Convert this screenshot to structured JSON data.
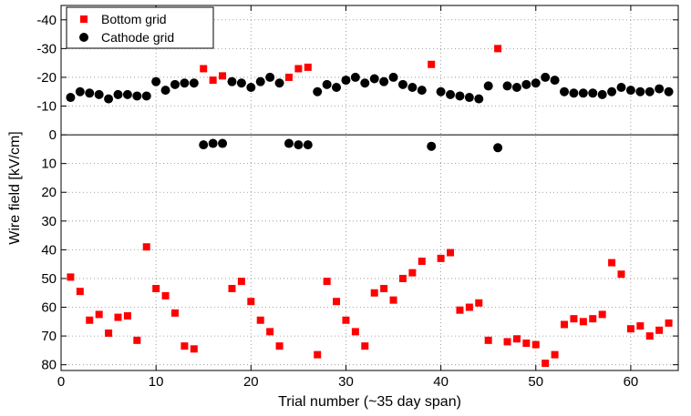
{
  "chart_data": {
    "type": "scatter",
    "xlabel": "Trial number (~35 day span)",
    "ylabel": "Wire field [kV/cm]",
    "xlim": [
      0,
      65
    ],
    "ylim": [
      -45,
      82
    ],
    "y_reversed": true,
    "xticks": [
      0,
      10,
      20,
      30,
      40,
      50,
      60
    ],
    "yticks": [
      -40,
      -30,
      -20,
      -10,
      0,
      10,
      20,
      30,
      40,
      50,
      60,
      70,
      80
    ],
    "grid": true,
    "zero_line": true,
    "legend_position": "top-left",
    "series": [
      {
        "name": "Bottom grid",
        "marker": "square",
        "color": "#ff0000",
        "points": [
          [
            1,
            49.5
          ],
          [
            2,
            54.5
          ],
          [
            3,
            64.5
          ],
          [
            4,
            62.5
          ],
          [
            5,
            69
          ],
          [
            6,
            63.5
          ],
          [
            7,
            63
          ],
          [
            8,
            71.5
          ],
          [
            9,
            39
          ],
          [
            10,
            53.5
          ],
          [
            11,
            56
          ],
          [
            12,
            62
          ],
          [
            13,
            73.5
          ],
          [
            14,
            74.5
          ],
          [
            15,
            -23
          ],
          [
            16,
            -19
          ],
          [
            17,
            -20.5
          ],
          [
            18,
            53.5
          ],
          [
            19,
            51
          ],
          [
            20,
            58
          ],
          [
            21,
            64.5
          ],
          [
            22,
            68.5
          ],
          [
            23,
            73.5
          ],
          [
            24,
            -20
          ],
          [
            25,
            -23
          ],
          [
            26,
            -23.5
          ],
          [
            27,
            76.5
          ],
          [
            28,
            51
          ],
          [
            29,
            58
          ],
          [
            30,
            64.5
          ],
          [
            31,
            68.5
          ],
          [
            32,
            73.5
          ],
          [
            33,
            55
          ],
          [
            34,
            53.5
          ],
          [
            35,
            57.5
          ],
          [
            36,
            50
          ],
          [
            37,
            48
          ],
          [
            38,
            44
          ],
          [
            39,
            -24.5
          ],
          [
            40,
            43
          ],
          [
            41,
            41
          ],
          [
            42,
            61
          ],
          [
            43,
            60
          ],
          [
            44,
            58.5
          ],
          [
            45,
            71.5
          ],
          [
            46,
            -30
          ],
          [
            47,
            72
          ],
          [
            48,
            71
          ],
          [
            49,
            72.5
          ],
          [
            50,
            73
          ],
          [
            51,
            79.5
          ],
          [
            52,
            76.5
          ],
          [
            53,
            66
          ],
          [
            54,
            64
          ],
          [
            55,
            65
          ],
          [
            56,
            64
          ],
          [
            57,
            62.5
          ],
          [
            58,
            44.5
          ],
          [
            59,
            48.5
          ],
          [
            60,
            67.5
          ],
          [
            61,
            66.5
          ],
          [
            62,
            70
          ],
          [
            63,
            68
          ],
          [
            64,
            65.5
          ]
        ]
      },
      {
        "name": "Cathode grid",
        "marker": "circle",
        "color": "#000000",
        "points": [
          [
            1,
            -13
          ],
          [
            2,
            -15
          ],
          [
            3,
            -14.5
          ],
          [
            4,
            -14
          ],
          [
            5,
            -12.5
          ],
          [
            6,
            -14
          ],
          [
            7,
            -14
          ],
          [
            8,
            -13.5
          ],
          [
            9,
            -13.5
          ],
          [
            10,
            -18.5
          ],
          [
            11,
            -15.5
          ],
          [
            12,
            -17.5
          ],
          [
            13,
            -18
          ],
          [
            14,
            -18
          ],
          [
            15,
            3.5
          ],
          [
            16,
            3
          ],
          [
            17,
            3
          ],
          [
            18,
            -18.5
          ],
          [
            19,
            -18
          ],
          [
            20,
            -16.5
          ],
          [
            21,
            -18.5
          ],
          [
            22,
            -20
          ],
          [
            23,
            -18
          ],
          [
            24,
            3
          ],
          [
            25,
            3.5
          ],
          [
            26,
            3.5
          ],
          [
            27,
            -15
          ],
          [
            28,
            -17.5
          ],
          [
            29,
            -16.5
          ],
          [
            30,
            -19
          ],
          [
            31,
            -20
          ],
          [
            32,
            -18
          ],
          [
            33,
            -19.5
          ],
          [
            34,
            -18.5
          ],
          [
            35,
            -20
          ],
          [
            36,
            -17.5
          ],
          [
            37,
            -16.5
          ],
          [
            38,
            -15.5
          ],
          [
            39,
            4
          ],
          [
            40,
            -15
          ],
          [
            41,
            -14
          ],
          [
            42,
            -13.5
          ],
          [
            43,
            -13
          ],
          [
            44,
            -12.5
          ],
          [
            45,
            -17
          ],
          [
            46,
            4.5
          ],
          [
            47,
            -17
          ],
          [
            48,
            -16.5
          ],
          [
            49,
            -17.5
          ],
          [
            50,
            -18
          ],
          [
            51,
            -20
          ],
          [
            52,
            -19
          ],
          [
            53,
            -15
          ],
          [
            54,
            -14.5
          ],
          [
            55,
            -14.5
          ],
          [
            56,
            -14.5
          ],
          [
            57,
            -14
          ],
          [
            58,
            -15
          ],
          [
            59,
            -16.5
          ],
          [
            60,
            -15.5
          ],
          [
            61,
            -15
          ],
          [
            62,
            -15
          ],
          [
            63,
            -16
          ],
          [
            64,
            -15
          ]
        ]
      }
    ]
  }
}
